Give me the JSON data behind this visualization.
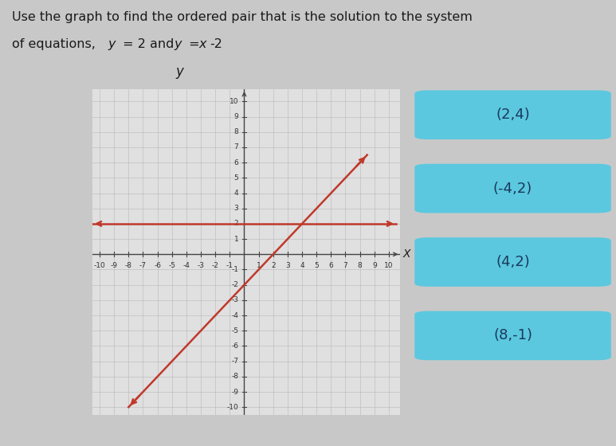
{
  "title_line1": "Use the graph to find the ordered pair that is the solution to the system",
  "title_line2": "of equations, ",
  "title_eq1": "y",
  "title_eq1b": " = 2 and ",
  "title_eq2": "y",
  "title_eq2b": " = ",
  "title_eq2c": "x",
  "title_eq2d": "-2",
  "xlim": [
    -10,
    10
  ],
  "ylim": [
    -10,
    10
  ],
  "xlabel": "X",
  "ylabel": "y",
  "line_color": "#c0392b",
  "line_width": 1.8,
  "grid_color": "#c8c8c8",
  "axis_color": "#444444",
  "plot_bg": "#e0e0e0",
  "button_color": "#5bc8df",
  "button_labels": [
    "(2,4)",
    "(-4,2)",
    "(4,2)",
    "(8,-1)"
  ],
  "button_text_color": "#1a3a5c",
  "fig_bg": "#c8c8c8"
}
